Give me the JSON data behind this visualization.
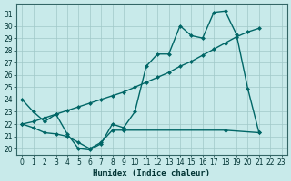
{
  "bg_color": "#c8eaea",
  "line_color": "#006666",
  "grid_color": "#a0c8c8",
  "xlabel": "Humidex (Indice chaleur)",
  "ylim": [
    19.5,
    31.8
  ],
  "xlim": [
    -0.5,
    23.5
  ],
  "yticks": [
    20,
    21,
    22,
    23,
    24,
    25,
    26,
    27,
    28,
    29,
    30,
    31
  ],
  "xticks": [
    0,
    1,
    2,
    3,
    4,
    5,
    6,
    7,
    8,
    9,
    10,
    11,
    12,
    13,
    14,
    15,
    16,
    17,
    18,
    19,
    20,
    21,
    22,
    23
  ],
  "figsize": [
    3.2,
    2.0
  ],
  "dpi": 100,
  "curve1_x": [
    0,
    1,
    2,
    3,
    4,
    5,
    6,
    7,
    8,
    9,
    10,
    11,
    12,
    13,
    14,
    15,
    16,
    17,
    18,
    19,
    20,
    21
  ],
  "curve1_y": [
    24.0,
    23.0,
    22.2,
    22.8,
    21.2,
    20.0,
    19.9,
    20.4,
    22.0,
    21.7,
    23.0,
    26.7,
    27.7,
    27.7,
    30.0,
    29.2,
    29.0,
    31.1,
    31.2,
    29.3,
    24.9,
    21.3
  ],
  "curve2_x": [
    0,
    1,
    2,
    3,
    4,
    5,
    6,
    7,
    8,
    9,
    10,
    11,
    12,
    13,
    14,
    15,
    16,
    17,
    18,
    19,
    20,
    21
  ],
  "curve2_y": [
    22.0,
    22.2,
    22.5,
    22.8,
    23.1,
    23.4,
    23.7,
    24.0,
    24.3,
    24.6,
    25.0,
    25.4,
    25.8,
    26.2,
    26.7,
    27.1,
    27.6,
    28.1,
    28.6,
    29.1,
    29.5,
    29.8
  ],
  "curve3_x": [
    0,
    1,
    2,
    3,
    4,
    5,
    6,
    7,
    8,
    9,
    18,
    21
  ],
  "curve3_y": [
    22.0,
    21.7,
    21.3,
    21.2,
    21.0,
    20.5,
    20.0,
    20.5,
    21.5,
    21.5,
    21.5,
    21.3
  ]
}
